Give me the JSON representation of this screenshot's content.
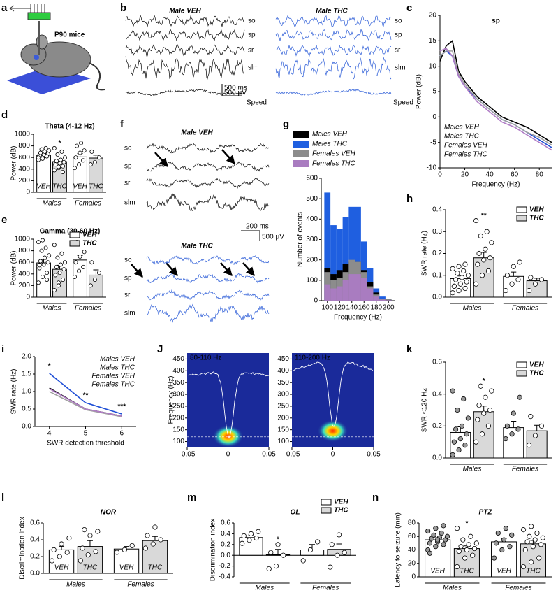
{
  "panel_labels": [
    "a",
    "b",
    "c",
    "d",
    "e",
    "f",
    "g",
    "h",
    "i",
    "J",
    "k",
    "l",
    "m",
    "n"
  ],
  "mouse": {
    "label": "P90 mice"
  },
  "traces_b": {
    "titles": [
      "Male VEH",
      "Male THC"
    ],
    "channels": [
      "so",
      "sp",
      "sr",
      "slm"
    ],
    "speed": "Speed",
    "scale_time": "500 ms",
    "scale_voltage": "500 μV"
  },
  "traces_f": {
    "titles": [
      "Male VEH",
      "Male THC"
    ],
    "channels": [
      "so",
      "sp",
      "sr",
      "slm"
    ],
    "scale_time": "200 ms",
    "scale_voltage": "500 μV"
  },
  "spectrograms": {
    "ylabel": "Frequency (Hz)",
    "ylim": [
      75,
      475
    ],
    "yticks": [
      100,
      150,
      200,
      250,
      300,
      350,
      400,
      450
    ],
    "xlim": [
      -0.05,
      0.05
    ],
    "xticks": [
      -0.05,
      0,
      0.05
    ],
    "bands": [
      "80-110 Hz",
      "110-200 Hz"
    ]
  },
  "chart_data": [
    {
      "type": "line",
      "title": "sp",
      "xlabel": "Frequency (Hz)",
      "ylabel": "Power (dB)",
      "x": [
        0,
        5,
        10,
        15,
        20,
        30,
        40,
        50,
        60,
        70,
        80,
        90
      ],
      "xlim": [
        0,
        90
      ],
      "xticks": [
        0,
        20,
        40,
        60,
        80
      ],
      "ylim": [
        -10,
        20
      ],
      "yticks": [
        -10,
        -5,
        0,
        5,
        10,
        15,
        20
      ],
      "legend_position": "lower left",
      "series": [
        {
          "name": "Males VEH",
          "color": "#000000",
          "values": [
            11,
            14,
            15,
            9,
            7,
            4,
            2,
            0,
            -1,
            -2,
            -3.5,
            -5
          ]
        },
        {
          "name": "Males THC",
          "color": "#1f4fd6",
          "values": [
            12,
            13,
            12,
            8,
            6,
            3.5,
            1.5,
            -0.5,
            -1.5,
            -3,
            -4.5,
            -6
          ]
        },
        {
          "name": "Females VEH",
          "color": "#a0a0a0",
          "values": [
            12,
            13,
            13,
            8.5,
            6.5,
            3.5,
            1.5,
            -0.5,
            -1.5,
            -3,
            -4,
            -5.5
          ]
        },
        {
          "name": "Females THC",
          "color": "#b07cc6",
          "values": [
            13,
            13.5,
            12,
            8,
            6,
            3,
            1,
            -1,
            -2,
            -3.5,
            -5,
            -6.5
          ]
        }
      ]
    },
    {
      "type": "bar",
      "title": "Theta (4-12 Hz)",
      "ylabel": "Power (dB)",
      "ylim": [
        0,
        1000
      ],
      "yticks": [
        0,
        200,
        400,
        600,
        800,
        1000
      ],
      "categories": [
        "VEH",
        "THC",
        "VEH",
        "THC"
      ],
      "groups": [
        "Males",
        "Females"
      ],
      "values": [
        640,
        530,
        610,
        590
      ],
      "errors": [
        25,
        40,
        60,
        50
      ],
      "colors": [
        "#ffffff",
        "#d9d9d9",
        "#ffffff",
        "#d9d9d9"
      ],
      "point_colors": [
        "#ffffff",
        "#ffffff",
        "#ffffff",
        "#ffffff"
      ],
      "annotations": [
        null,
        "*",
        null,
        null
      ],
      "points": [
        [
          560,
          600,
          620,
          640,
          650,
          660,
          680,
          700,
          720,
          740,
          760,
          600,
          580,
          620
        ],
        [
          380,
          420,
          450,
          480,
          500,
          520,
          540,
          560,
          600,
          650,
          700,
          760,
          440,
          350
        ],
        [
          420,
          480,
          550,
          600,
          680,
          720,
          800,
          850
        ],
        [
          480,
          520,
          600,
          700
        ]
      ]
    },
    {
      "type": "bar",
      "title": "Gamma (30-60 Hz)",
      "ylabel": "Power (dB)",
      "ylim": [
        0,
        1000
      ],
      "yticks": [
        0,
        200,
        400,
        600,
        800,
        1000
      ],
      "groups": [
        "Males",
        "Females"
      ],
      "values": [
        590,
        480,
        640,
        380
      ],
      "errors": [
        60,
        70,
        80,
        90
      ],
      "legend": [
        {
          "name": "VEH",
          "color": "#ffffff"
        },
        {
          "name": "THC",
          "color": "#d9d9d9"
        }
      ],
      "colors": [
        "#ffffff",
        "#d9d9d9",
        "#ffffff",
        "#d9d9d9"
      ],
      "point_colors": [
        "#ffffff",
        "#ffffff",
        "#ffffff",
        "#ffffff"
      ],
      "points": [
        [
          250,
          350,
          420,
          500,
          560,
          600,
          620,
          680,
          720,
          800,
          850,
          950,
          980,
          300,
          550
        ],
        [
          120,
          250,
          300,
          380,
          420,
          480,
          520,
          560,
          600,
          680,
          750,
          900,
          200
        ],
        [
          350,
          450,
          520,
          600,
          700,
          780,
          950
        ],
        [
          200,
          300,
          420,
          600
        ]
      ]
    },
    {
      "type": "histogram",
      "xlabel": "Frequency (Hz)",
      "ylabel": "Number of events",
      "xlim": [
        90,
        210
      ],
      "xticks": [
        100,
        120,
        140,
        160,
        180,
        200
      ],
      "ylim": [
        0,
        600
      ],
      "yticks": [
        0,
        100,
        200,
        300,
        400,
        500,
        600
      ],
      "bins": [
        95,
        105,
        115,
        125,
        135,
        145,
        155,
        165,
        175,
        185,
        195,
        205
      ],
      "series": [
        {
          "name": "Males VEH",
          "color": "#000000",
          "values": [
            160,
            130,
            150,
            180,
            190,
            190,
            150,
            90,
            40,
            10,
            5
          ]
        },
        {
          "name": "Males THC",
          "color": "#1f5fe0",
          "values": [
            530,
            370,
            350,
            410,
            460,
            460,
            290,
            160,
            60,
            20,
            5
          ]
        },
        {
          "name": "Females VEH",
          "color": "#8c8c8c",
          "values": [
            140,
            100,
            110,
            140,
            200,
            190,
            140,
            70,
            30,
            10,
            3
          ]
        },
        {
          "name": "Females THC",
          "color": "#a97cc0",
          "values": [
            80,
            60,
            70,
            100,
            130,
            130,
            110,
            60,
            20,
            5,
            2
          ]
        }
      ]
    },
    {
      "type": "bar",
      "ylabel": "SWR rate (Hz)",
      "ylim": [
        0,
        0.4
      ],
      "yticks": [
        {
          "value": 0,
          "label": "0.0"
        },
        0.1,
        0.2,
        0.3,
        0.4
      ],
      "groups": [
        "Males",
        "Females"
      ],
      "values": [
        0.085,
        0.18,
        0.095,
        0.075
      ],
      "errors": [
        0.012,
        0.025,
        0.02,
        0.012
      ],
      "legend": [
        {
          "name": "VEH",
          "color": "#ffffff"
        },
        {
          "name": "THC",
          "color": "#d9d9d9"
        }
      ],
      "colors": [
        "#ffffff",
        "#d9d9d9",
        "#ffffff",
        "#d9d9d9"
      ],
      "point_colors": [
        "#ffffff",
        "#ffffff",
        "#ffffff",
        "#ffffff"
      ],
      "annotations": [
        null,
        "**",
        null,
        null
      ],
      "points": [
        [
          0.02,
          0.03,
          0.04,
          0.05,
          0.06,
          0.07,
          0.08,
          0.09,
          0.1,
          0.11,
          0.12,
          0.13,
          0.14,
          0.15,
          0.05
        ],
        [
          0.06,
          0.1,
          0.12,
          0.15,
          0.17,
          0.18,
          0.2,
          0.22,
          0.25,
          0.28,
          0.3,
          0.35,
          0.1
        ],
        [
          0.03,
          0.06,
          0.08,
          0.1,
          0.14,
          0.16
        ],
        [
          0.03,
          0.06,
          0.08,
          0.09
        ]
      ]
    },
    {
      "type": "line",
      "xlabel": "SWR detection threshold",
      "ylabel": "SWR rate (Hz)",
      "x": [
        4,
        5,
        6
      ],
      "xlim": [
        3.6,
        6.4
      ],
      "xticks": [
        4,
        5,
        6
      ],
      "ylim": [
        0,
        2
      ],
      "yticks": [
        {
          "value": 0,
          "label": "0.0"
        },
        0.5,
        {
          "value": 1,
          "label": "1.0"
        },
        1.5,
        {
          "value": 2,
          "label": "2.0"
        }
      ],
      "legend_position": "upper right",
      "annotations": [
        "*",
        "**",
        "***"
      ],
      "series": [
        {
          "name": "Males VEH",
          "color": "#000000",
          "values": [
            1.1,
            0.5,
            0.3
          ]
        },
        {
          "name": "Males THC",
          "color": "#1f4fd6",
          "values": [
            1.52,
            0.68,
            0.36
          ]
        },
        {
          "name": "Females VEH",
          "color": "#a0a0a0",
          "values": [
            1.0,
            0.48,
            0.28
          ]
        },
        {
          "name": "Females THC",
          "color": "#b07cc6",
          "values": [
            1.08,
            0.5,
            0.3
          ]
        }
      ]
    },
    {
      "type": "bar",
      "ylabel": "SWR <120 Hz",
      "ylim": [
        0,
        0.6
      ],
      "yticks": [
        {
          "value": 0,
          "label": "0.0"
        },
        0.2,
        0.4,
        0.6
      ],
      "groups": [
        "Males",
        "Females"
      ],
      "values": [
        0.16,
        0.29,
        0.19,
        0.17
      ],
      "errors": [
        0.035,
        0.035,
        0.04,
        0.035
      ],
      "legend": [
        {
          "name": "VEH",
          "color": "#ffffff"
        },
        {
          "name": "THC",
          "color": "#d9d9d9"
        }
      ],
      "colors": [
        "#ffffff",
        "#d9d9d9",
        "#ffffff",
        "#d9d9d9"
      ],
      "point_colors": [
        "#999999",
        "#ffffff",
        "#999999",
        "#ffffff"
      ],
      "annotations": [
        null,
        "*",
        null,
        null
      ],
      "points": [
        [
          0.02,
          0.05,
          0.08,
          0.1,
          0.12,
          0.15,
          0.18,
          0.2,
          0.25,
          0.3,
          0.37,
          0.42
        ],
        [
          0.1,
          0.15,
          0.2,
          0.24,
          0.28,
          0.3,
          0.33,
          0.38,
          0.42,
          0.45
        ],
        [
          0.12,
          0.15,
          0.18,
          0.2,
          0.28,
          0.38
        ],
        [
          0.08,
          0.14,
          0.2,
          0.26
        ]
      ]
    },
    {
      "type": "bar",
      "title": "NOR",
      "ylabel": "Discrimination index",
      "ylim": [
        0,
        0.6
      ],
      "yticks": [
        {
          "value": 0,
          "label": "0.0"
        },
        0.2,
        0.4,
        0.6
      ],
      "categories": [
        "VEH",
        "THC",
        "VEH",
        "THC"
      ],
      "groups": [
        "Males",
        "Females"
      ],
      "values": [
        0.28,
        0.32,
        0.29,
        0.39
      ],
      "errors": [
        0.04,
        0.07,
        0.03,
        0.05
      ],
      "colors": [
        "#ffffff",
        "#d9d9d9",
        "#ffffff",
        "#d9d9d9"
      ],
      "point_colors": [
        "#ffffff",
        "#ffffff",
        "#ffffff",
        "#ffffff"
      ],
      "points": [
        [
          0.15,
          0.2,
          0.25,
          0.28,
          0.35,
          0.42
        ],
        [
          0.15,
          0.22,
          0.26,
          0.3,
          0.45,
          0.5,
          0.52
        ],
        [
          0.25,
          0.28,
          0.33
        ],
        [
          0.3,
          0.35,
          0.4,
          0.45,
          0.55
        ]
      ]
    },
    {
      "type": "bar",
      "title": "OL",
      "ylabel": "Discrimination index",
      "ylim": [
        -0.4,
        0.6
      ],
      "yticks": [
        -0.4,
        -0.2,
        {
          "value": 0,
          "label": "0.0"
        },
        0.2,
        0.4,
        0.6
      ],
      "groups": [
        "Males",
        "Females"
      ],
      "values": [
        0.33,
        0.01,
        0.1,
        0.11
      ],
      "errors": [
        0.05,
        0.1,
        0.1,
        0.1
      ],
      "legend": [
        {
          "name": "VEH",
          "color": "#ffffff"
        },
        {
          "name": "THC",
          "color": "#d9d9d9"
        }
      ],
      "colors": [
        "#ffffff",
        "#d9d9d9",
        "#ffffff",
        "#d9d9d9"
      ],
      "point_colors": [
        "#ffffff",
        "#ffffff",
        "#ffffff",
        "#ffffff"
      ],
      "annotations": [
        null,
        "*",
        null,
        null
      ],
      "points": [
        [
          0.22,
          0.28,
          0.32,
          0.36,
          0.4,
          0.44
        ],
        [
          -0.25,
          -0.2,
          0.0,
          0.05,
          0.2
        ],
        [
          -0.1,
          0.1,
          0.25
        ],
        [
          -0.22,
          0.0,
          0.05,
          0.2,
          0.38
        ]
      ]
    },
    {
      "type": "bar",
      "title": "PTZ",
      "ylabel": "Latency to seizure (min)",
      "ylim": [
        0,
        80
      ],
      "yticks": [
        0,
        20,
        40,
        60,
        80
      ],
      "categories": [
        "VEH",
        "THC",
        "VEH",
        "THC"
      ],
      "groups": [
        "Males",
        "Females"
      ],
      "values": [
        55,
        42,
        52,
        49
      ],
      "errors": [
        3,
        4,
        5,
        5
      ],
      "colors": [
        "#ffffff",
        "#d9d9d9",
        "#ffffff",
        "#d9d9d9"
      ],
      "point_colors": [
        "#999999",
        "#ffffff",
        "#999999",
        "#ffffff"
      ],
      "annotations": [
        null,
        "*",
        null,
        null
      ],
      "points": [
        [
          40,
          45,
          48,
          50,
          52,
          55,
          57,
          58,
          60,
          62,
          65,
          68,
          72,
          76,
          35,
          55
        ],
        [
          15,
          28,
          32,
          38,
          40,
          42,
          45,
          48,
          50,
          55,
          60,
          72
        ],
        [
          28,
          40,
          45,
          50,
          55,
          62,
          65,
          72
        ],
        [
          15,
          22,
          28,
          40,
          45,
          48,
          52,
          55,
          58,
          60,
          65,
          70,
          75
        ]
      ]
    }
  ]
}
